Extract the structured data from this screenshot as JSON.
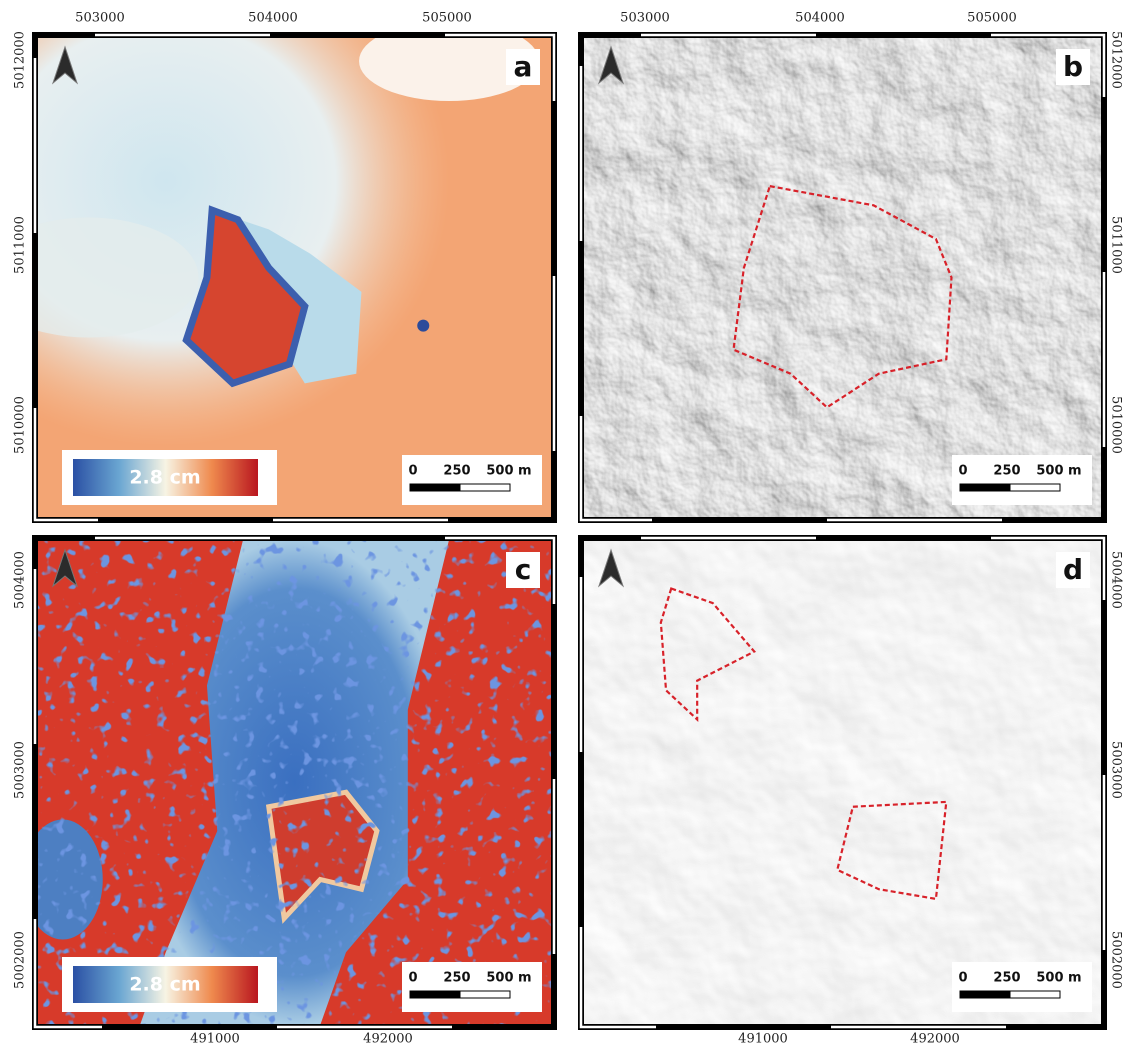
{
  "panels": [
    {
      "label": "a",
      "x_ticks": [
        503000,
        504000,
        505000
      ],
      "y_ticks": [
        5012000,
        5011000,
        5010000
      ],
      "legend": "2.8 cm",
      "scale_bar": [
        0,
        250,
        "500 m"
      ]
    },
    {
      "label": "b",
      "x_ticks": [
        503000,
        504000,
        505000
      ],
      "y_ticks": [
        5012000,
        5011000,
        5010000
      ],
      "scale_bar": [
        0,
        250,
        "500 m"
      ]
    },
    {
      "label": "c",
      "x_ticks": [
        491000,
        492000
      ],
      "y_ticks": [
        5004000,
        5003000,
        5002000
      ],
      "legend": "2.8 cm",
      "scale_bar": [
        0,
        250,
        "500 m"
      ]
    },
    {
      "label": "d",
      "x_ticks": [
        491000,
        492000
      ],
      "y_ticks": [
        5004000,
        5003000,
        5002000
      ],
      "scale_bar": [
        0,
        250,
        "500 m"
      ]
    }
  ]
}
